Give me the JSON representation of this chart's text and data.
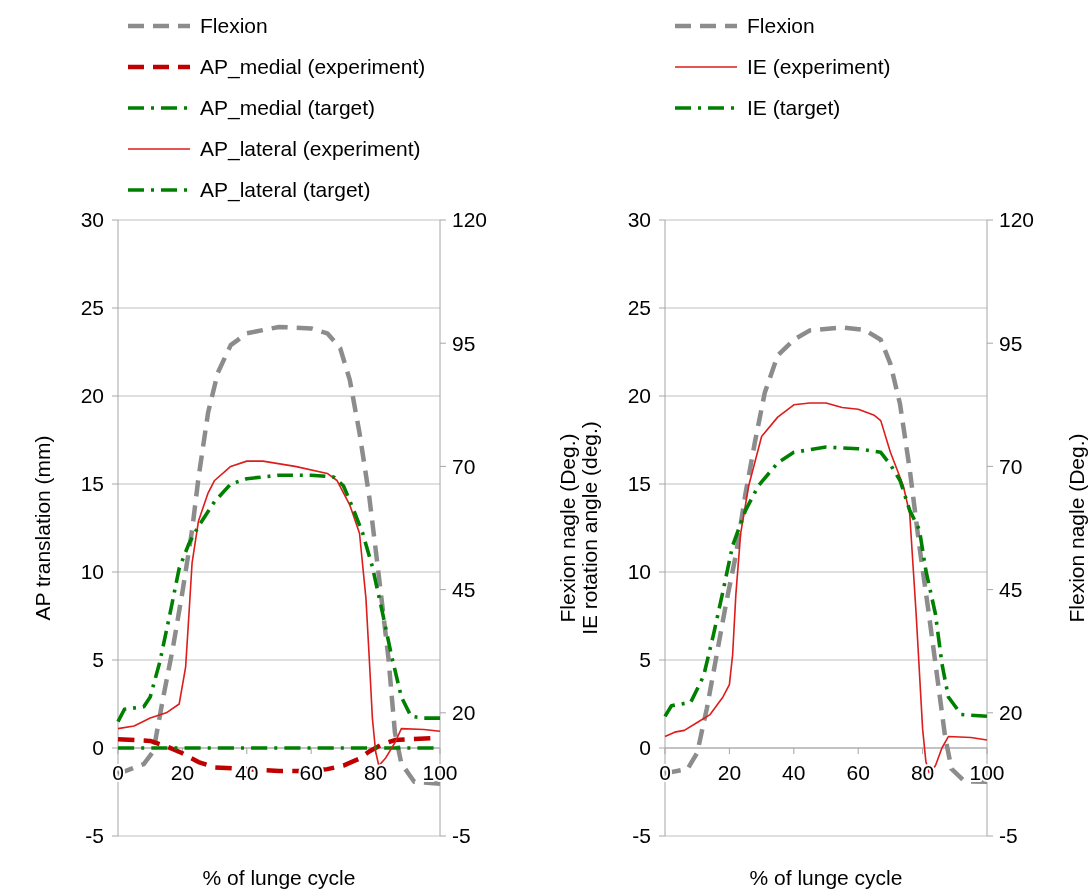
{
  "chart_data": [
    {
      "type": "line",
      "xlabel": "% of lunge cycle",
      "ylabel": "AP translation (mm)",
      "y2label": "Flexion nagle (Deg.)",
      "xlim": [
        0,
        100
      ],
      "xticks": [
        0,
        20,
        40,
        60,
        80,
        100
      ],
      "ylim": [
        -5,
        30
      ],
      "yticks": [
        -5,
        0,
        5,
        10,
        15,
        20,
        25,
        30
      ],
      "y2lim": [
        -5,
        120
      ],
      "y2ticks": [
        -5,
        20,
        45,
        70,
        95,
        120
      ],
      "grid": "y",
      "legend": "top",
      "series": [
        {
          "name": "Flexion",
          "color": "#8c8c8c",
          "line_style": "dashed",
          "axis": "y2",
          "x": [
            0,
            8,
            11,
            14,
            17,
            20,
            23,
            25,
            28,
            31,
            35,
            40,
            50,
            60,
            65,
            69,
            72,
            75,
            78,
            81,
            84,
            86,
            88,
            92,
            100
          ],
          "values": [
            7.6,
            9.6,
            12.2,
            23,
            33,
            44.5,
            57,
            67.7,
            81,
            89,
            94.6,
            97,
            98.3,
            98,
            97,
            94,
            87.5,
            76.8,
            64,
            47.8,
            31,
            16,
            9.7,
            6,
            5.6
          ]
        },
        {
          "name": "AP_medial (experiment)",
          "color": "#c00000",
          "line_style": "dashed",
          "x": [
            0,
            10,
            15,
            20,
            25,
            30,
            40,
            50,
            60,
            65,
            70,
            75,
            78,
            82,
            86,
            90,
            97
          ],
          "values": [
            0.5,
            0.4,
            0.1,
            -0.3,
            -0.8,
            -1.1,
            -1.2,
            -1.3,
            -1.3,
            -1.2,
            -1,
            -0.6,
            -0.2,
            0.2,
            0.45,
            0.5,
            0.55
          ]
        },
        {
          "name": "AP_medial (target)",
          "color": "#008000",
          "line_style": "dashdot",
          "x": [
            0,
            98
          ],
          "values": [
            0,
            0
          ]
        },
        {
          "name": "AP_lateral (experiment)",
          "color": "#dd1c1c",
          "line_style": "solid",
          "x": [
            0,
            5,
            10,
            15,
            19,
            21,
            22,
            23,
            25,
            28,
            30,
            35,
            40,
            45,
            55,
            65,
            68,
            72,
            75,
            77,
            78,
            79,
            80,
            81,
            83,
            86,
            88,
            95,
            100
          ],
          "values": [
            1.1,
            1.25,
            1.7,
            2,
            2.5,
            4.6,
            7.5,
            10.5,
            12.9,
            14.5,
            15.2,
            16,
            16.3,
            16.3,
            16,
            15.6,
            15.2,
            13.8,
            12.2,
            8.5,
            5.2,
            1.7,
            -0.2,
            -1,
            -0.6,
            0.3,
            1.1,
            1.05,
            0.95
          ]
        },
        {
          "name": "AP_lateral (target)",
          "color": "#008000",
          "line_style": "dashdot",
          "x": [
            0,
            2,
            8,
            10,
            13,
            16,
            19,
            22,
            25,
            30,
            35,
            40,
            50,
            60,
            67,
            70,
            73,
            76,
            79,
            82,
            85,
            88,
            91,
            95,
            100
          ],
          "values": [
            1.5,
            2.2,
            2.35,
            2.9,
            4.9,
            7.5,
            10.2,
            11.6,
            12.6,
            14,
            15,
            15.3,
            15.5,
            15.5,
            15.4,
            14.9,
            13.6,
            12.2,
            10.3,
            7.8,
            5.2,
            2.9,
            1.8,
            1.7,
            1.7
          ]
        }
      ]
    },
    {
      "type": "line",
      "xlabel": "% of lunge cycle",
      "ylabel": "IE rotation angle (deg.)",
      "y2label": "Flexion nagle (Deg.)",
      "xlim": [
        0,
        100
      ],
      "xticks": [
        0,
        20,
        40,
        60,
        80,
        100
      ],
      "ylim": [
        -5,
        30
      ],
      "yticks": [
        -5,
        0,
        5,
        10,
        15,
        20,
        25,
        30
      ],
      "y2lim": [
        -5,
        120
      ],
      "y2ticks": [
        -5,
        20,
        45,
        70,
        95,
        120
      ],
      "grid": "y",
      "legend": "top",
      "series": [
        {
          "name": "Flexion",
          "color": "#8c8c8c",
          "line_style": "dashed",
          "axis": "y2",
          "x": [
            0,
            7,
            10,
            13,
            16,
            19,
            22,
            25,
            28,
            31,
            35,
            40,
            45,
            55,
            62,
            67,
            70,
            73,
            76,
            79,
            82,
            85,
            87,
            89,
            93,
            100
          ],
          "values": [
            7.7,
            8.6,
            11.9,
            20.9,
            31.6,
            42.3,
            52,
            64.5,
            75.2,
            85,
            92.5,
            95.7,
            97.6,
            98.2,
            97.7,
            95.7,
            90.8,
            82.6,
            69.4,
            53.8,
            39.8,
            25,
            15.1,
            8.6,
            6.1,
            6
          ]
        },
        {
          "name": "IE (experiment)",
          "color": "#dd1c1c",
          "line_style": "solid",
          "x": [
            0,
            3,
            6,
            10,
            14,
            18,
            20,
            21,
            22,
            23.5,
            26,
            30,
            35,
            40,
            45,
            50,
            55,
            60,
            65,
            67,
            70,
            74,
            76,
            78,
            80,
            81,
            82,
            84,
            86,
            88,
            95,
            100
          ],
          "values": [
            0.65,
            0.9,
            1,
            1.45,
            1.9,
            2.9,
            3.6,
            5.3,
            8.7,
            12.2,
            14.9,
            17.7,
            18.8,
            19.5,
            19.6,
            19.6,
            19.35,
            19.25,
            18.9,
            18.6,
            16.8,
            14.9,
            13.3,
            7.6,
            1.1,
            -0.75,
            -1.4,
            -1,
            0,
            0.65,
            0.6,
            0.45
          ]
        },
        {
          "name": "IE (target)",
          "color": "#008000",
          "line_style": "dashdot",
          "x": [
            0,
            2,
            8,
            12,
            15,
            18,
            21,
            25,
            29,
            35,
            40,
            50,
            60,
            67,
            70,
            73,
            76,
            79,
            81,
            84,
            86,
            88,
            92,
            100
          ],
          "values": [
            1.8,
            2.4,
            2.6,
            4.1,
            6.4,
            8.9,
            11.5,
            13.5,
            14.9,
            16.2,
            16.8,
            17.1,
            17,
            16.8,
            16.1,
            15.2,
            13.5,
            12.4,
            10.1,
            7.6,
            4.8,
            2.9,
            1.9,
            1.8
          ]
        }
      ]
    }
  ]
}
